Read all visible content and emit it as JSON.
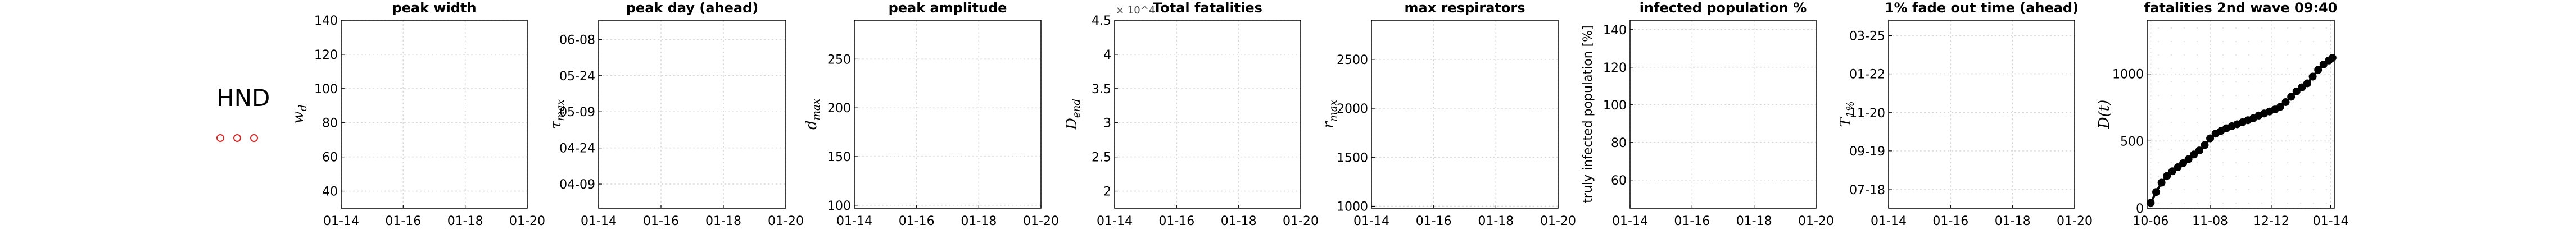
{
  "country": "HND",
  "colors": {
    "axis": "#000000",
    "grid": "#d9d9d9",
    "line": "#000000",
    "marker_outline": "#d62728"
  },
  "chart_data": [
    {
      "type": "line",
      "title": "peak width",
      "ylabel": "w_d",
      "ylabel_style": "math",
      "ylim": [
        30,
        140
      ],
      "yticks": [
        "40",
        "60",
        "80",
        "100",
        "120",
        "140"
      ],
      "ytick_values": [
        40,
        60,
        80,
        100,
        120,
        140
      ],
      "xticks": [
        "01-14",
        "01-16",
        "01-18",
        "01-20"
      ],
      "grid": true,
      "series": []
    },
    {
      "type": "line",
      "title": "peak day (ahead)",
      "ylabel": "τ_max",
      "ylabel_style": "math",
      "yticks": [
        "04-09",
        "04-24",
        "05-09",
        "05-24",
        "06-08"
      ],
      "ytick_values": [
        0,
        15,
        30,
        45,
        60
      ],
      "ylim": [
        -10,
        68
      ],
      "xticks": [
        "01-14",
        "01-16",
        "01-18",
        "01-20"
      ],
      "grid": true,
      "series": []
    },
    {
      "type": "line",
      "title": "peak amplitude",
      "ylabel": "d_max",
      "ylabel_style": "math",
      "ylim": [
        97,
        290
      ],
      "yticks": [
        "100",
        "150",
        "200",
        "250"
      ],
      "ytick_values": [
        100,
        150,
        200,
        250
      ],
      "xticks": [
        "01-14",
        "01-16",
        "01-18",
        "01-20"
      ],
      "grid": true,
      "series": []
    },
    {
      "type": "line",
      "title": "Total fatalities",
      "ylabel": "D_end",
      "ylabel_style": "math",
      "exponent": "× 10^4",
      "ylim": [
        1.75,
        4.5
      ],
      "yticks": [
        "2",
        "2.5",
        "3",
        "3.5",
        "4",
        "4.5"
      ],
      "ytick_values": [
        2,
        2.5,
        3,
        3.5,
        4,
        4.5
      ],
      "xticks": [
        "01-14",
        "01-16",
        "01-18",
        "01-20"
      ],
      "grid": true,
      "series": []
    },
    {
      "type": "line",
      "title": "max respirators",
      "ylabel": "r_max",
      "ylabel_style": "math",
      "ylim": [
        980,
        2900
      ],
      "yticks": [
        "1000",
        "1500",
        "2000",
        "2500"
      ],
      "ytick_values": [
        1000,
        1500,
        2000,
        2500
      ],
      "xticks": [
        "01-14",
        "01-16",
        "01-18",
        "01-20"
      ],
      "grid": true,
      "series": []
    },
    {
      "type": "line",
      "title": "infected population %",
      "ylabel": "truly infected population [%]",
      "ylabel_style": "text",
      "ylim": [
        45,
        145
      ],
      "yticks": [
        "60",
        "80",
        "100",
        "120",
        "140"
      ],
      "ytick_values": [
        60,
        80,
        100,
        120,
        140
      ],
      "xticks": [
        "01-14",
        "01-16",
        "01-18",
        "01-20"
      ],
      "grid": true,
      "series": []
    },
    {
      "type": "line",
      "title": "1% fade out time (ahead)",
      "ylabel": "T_1%",
      "ylabel_style": "math",
      "yticks": [
        "07-18",
        "09-19",
        "11-20",
        "01-22",
        "03-25"
      ],
      "ytick_values": [
        0,
        63,
        125,
        188,
        250
      ],
      "ylim": [
        -30,
        275
      ],
      "xticks": [
        "01-14",
        "01-16",
        "01-18",
        "01-20"
      ],
      "grid": true,
      "series": []
    },
    {
      "type": "line",
      "title": "fatalities 2nd wave 09:40",
      "ylabel": "D(t)",
      "ylabel_style": "math",
      "ylim": [
        0,
        1400
      ],
      "yticks": [
        "0",
        "500",
        "1000"
      ],
      "ytick_values": [
        0,
        500,
        1000
      ],
      "xticks": [
        "10-06",
        "11-08",
        "12-12",
        "01-14"
      ],
      "xtick_values": [
        0,
        33,
        67,
        100
      ],
      "xlim": [
        -2,
        102
      ],
      "grid": true,
      "series": [
        {
          "style": "line-with-markers",
          "x": [
            0,
            3,
            6,
            9,
            12,
            15,
            18,
            21,
            24,
            27,
            30,
            33,
            36,
            39,
            42,
            45,
            48,
            51,
            54,
            57,
            60,
            63,
            66,
            69,
            72,
            75,
            78,
            81,
            84,
            87,
            90,
            93,
            96,
            99,
            101
          ],
          "y": [
            40,
            120,
            190,
            240,
            275,
            305,
            335,
            365,
            400,
            430,
            470,
            520,
            555,
            575,
            595,
            610,
            625,
            640,
            655,
            670,
            690,
            705,
            720,
            735,
            755,
            790,
            830,
            870,
            900,
            930,
            980,
            1030,
            1070,
            1100,
            1120
          ]
        }
      ]
    }
  ]
}
